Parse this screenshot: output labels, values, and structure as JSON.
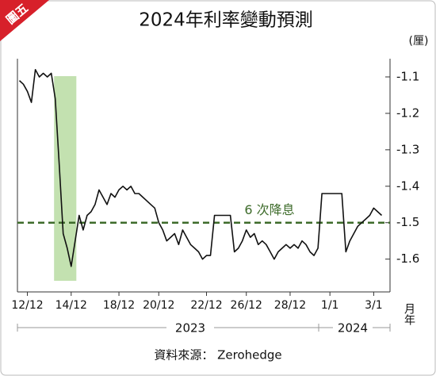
{
  "chart_data": {
    "type": "line",
    "badge": "圖五",
    "title": "2024年利率變動預測",
    "y_unit": "(厘)",
    "x_label": "月年",
    "years": [
      "2023",
      "2024"
    ],
    "source": "資料來源： Zerohedge",
    "categories": [
      null,
      null,
      "12/12",
      null,
      null,
      null,
      null,
      null,
      null,
      null,
      null,
      null,
      null,
      "14/12",
      null,
      null,
      null,
      null,
      null,
      null,
      null,
      null,
      null,
      null,
      null,
      "18/12",
      null,
      null,
      null,
      null,
      null,
      null,
      null,
      null,
      null,
      "20/12",
      null,
      null,
      null,
      null,
      null,
      null,
      null,
      null,
      null,
      null,
      null,
      "22/12",
      null,
      null,
      null,
      null,
      null,
      null,
      null,
      null,
      null,
      "26/12",
      null,
      null,
      null,
      null,
      null,
      null,
      null,
      null,
      null,
      null,
      "28/12",
      null,
      null,
      null,
      null,
      null,
      null,
      null,
      null,
      null,
      "1/1",
      null,
      null,
      null,
      null,
      null,
      null,
      null,
      null,
      null,
      null,
      "3/1",
      null,
      null
    ],
    "series": [
      {
        "color": "#111111",
        "values": [
          -1.11,
          -1.12,
          -1.14,
          -1.17,
          -1.08,
          -1.1,
          -1.09,
          -1.1,
          -1.09,
          -1.16,
          -1.34,
          -1.53,
          -1.57,
          -1.62,
          -1.55,
          -1.48,
          -1.52,
          -1.48,
          -1.47,
          -1.45,
          -1.41,
          -1.43,
          -1.45,
          -1.42,
          -1.43,
          -1.41,
          -1.4,
          -1.41,
          -1.4,
          -1.42,
          -1.42,
          -1.43,
          -1.44,
          -1.45,
          -1.46,
          -1.5,
          -1.52,
          -1.55,
          -1.54,
          -1.53,
          -1.56,
          -1.52,
          -1.54,
          -1.56,
          -1.57,
          -1.58,
          -1.6,
          -1.59,
          -1.59,
          -1.48,
          -1.48,
          -1.48,
          -1.48,
          -1.48,
          -1.58,
          -1.57,
          -1.55,
          -1.52,
          -1.54,
          -1.53,
          -1.56,
          -1.55,
          -1.56,
          -1.58,
          -1.6,
          -1.58,
          -1.57,
          -1.56,
          -1.57,
          -1.56,
          -1.57,
          -1.55,
          -1.56,
          -1.58,
          -1.59,
          -1.57,
          -1.42,
          -1.42,
          -1.42,
          -1.42,
          -1.42,
          -1.42,
          -1.58,
          -1.55,
          -1.53,
          -1.51,
          -1.5,
          -1.49,
          -1.48,
          -1.46,
          -1.47,
          -1.48
        ]
      }
    ],
    "ylim": [
      -1.69,
      -1.05
    ],
    "yticks": [
      -1.1,
      -1.2,
      -1.3,
      -1.4,
      -1.5,
      -1.6
    ],
    "reference_line": {
      "value": -1.5,
      "label": "6 次降息",
      "color": "#3d6b2a"
    },
    "highlight_color": "#b9dca2"
  }
}
